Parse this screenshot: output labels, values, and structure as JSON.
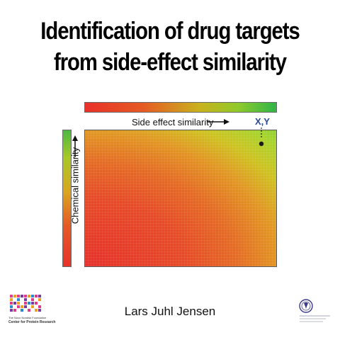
{
  "slide": {
    "title_line1": "Identification of drug targets",
    "title_line2": "from side-effect similarity",
    "author": "Lars Juhl Jensen"
  },
  "figure": {
    "x_axis_label": "Side effect similarity",
    "y_axis_label": "Chemical similarity",
    "point_label": "X,Y",
    "colors": {
      "low": "#e8312a",
      "mid": "#d9a620",
      "high": "#2fb549",
      "point": "#1a1a1a",
      "point_label": "#2a4a9a"
    }
  },
  "logos": {
    "left_caption_line1": "The Novo Nordisk Foundation",
    "left_caption_line2": "Center for Protein Research",
    "left_logo_icon": "cpr-logo-icon",
    "right_logo_icon": "university-seal-icon"
  }
}
